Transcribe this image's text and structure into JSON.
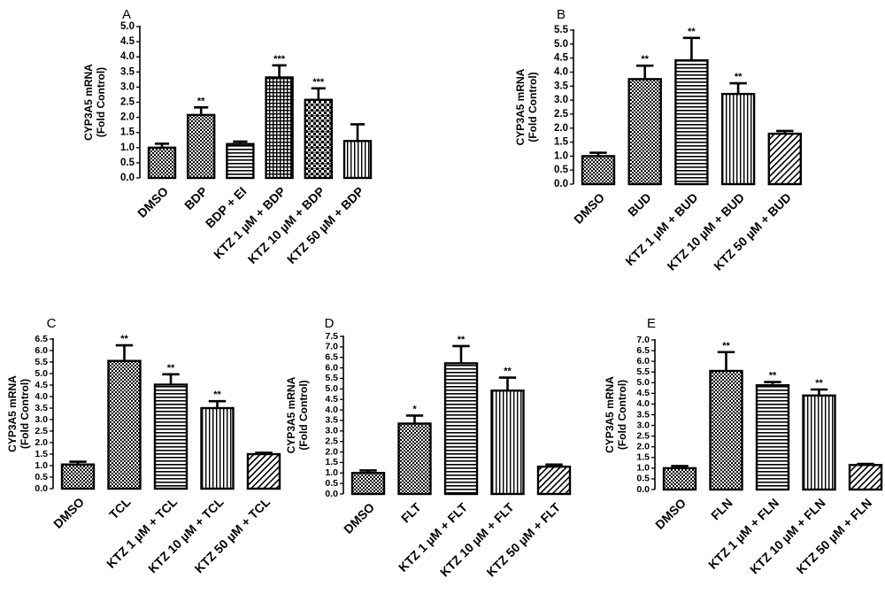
{
  "chart_data": [
    {
      "type": "bar",
      "panel_label": "A",
      "ylabel": [
        "CYP3A5 mRNA",
        "(Fold Control)"
      ],
      "ylim": [
        0,
        5.0
      ],
      "yticks": [
        "0.0",
        "0.5",
        "1.0",
        "1.5",
        "2.0",
        "2.5",
        "3.0",
        "3.5",
        "4.0",
        "4.5",
        "5.0"
      ],
      "categories": [
        "DMSO",
        "BDP",
        "BDP + EI",
        "KTZ 1 µM + BDP",
        "KTZ 10 µM + BDP",
        "KTZ 50 µM + BDP"
      ],
      "values": [
        1.0,
        2.08,
        1.12,
        3.32,
        2.58,
        1.22
      ],
      "errors": [
        0.13,
        0.25,
        0.08,
        0.4,
        0.38,
        0.55
      ],
      "significance": [
        "",
        "**",
        "",
        "***",
        "***",
        ""
      ],
      "patterns": [
        "dots",
        "dots",
        "hlines",
        "grid",
        "checks",
        "vlines"
      ]
    },
    {
      "type": "bar",
      "panel_label": "B",
      "ylabel": [
        "CYP3A5 mRNA",
        "(Fold Control)"
      ],
      "ylim": [
        0,
        5.5
      ],
      "yticks": [
        "0.0",
        "0.5",
        "1.0",
        "1.5",
        "2.0",
        "2.5",
        "3.0",
        "3.5",
        "4.0",
        "4.5",
        "5.0",
        "5.5"
      ],
      "categories": [
        "DMSO",
        "BUD",
        "KTZ 1 µM + BUD",
        "KTZ 10 µM + BUD",
        "KTZ 50 µM + BUD"
      ],
      "values": [
        1.0,
        3.75,
        4.42,
        3.22,
        1.8
      ],
      "errors": [
        0.12,
        0.48,
        0.8,
        0.38,
        0.1
      ],
      "significance": [
        "",
        "**",
        "**",
        "**",
        ""
      ],
      "patterns": [
        "dots",
        "dots",
        "hlines",
        "vlines",
        "diag"
      ]
    },
    {
      "type": "bar",
      "panel_label": "C",
      "ylabel": [
        "CYP3A5 mRNA",
        "(Fold Control)"
      ],
      "ylim": [
        0,
        6.5
      ],
      "yticks": [
        "0.0",
        "0.5",
        "1.0",
        "1.5",
        "2.0",
        "2.5",
        "3.0",
        "3.5",
        "4.0",
        "4.5",
        "5.0",
        "5.5",
        "6.0",
        "6.5"
      ],
      "categories": [
        "DMSO",
        "TCL",
        "KTZ 1 µM + TCL",
        "KTZ 10 µM + TCL",
        "KTZ 50 µM + TCL"
      ],
      "values": [
        1.05,
        5.55,
        4.52,
        3.5,
        1.5
      ],
      "errors": [
        0.12,
        0.68,
        0.45,
        0.3,
        0.06
      ],
      "significance": [
        "",
        "**",
        "**",
        "**",
        ""
      ],
      "patterns": [
        "dots",
        "dots",
        "hlines",
        "vlines",
        "diag"
      ]
    },
    {
      "type": "bar",
      "panel_label": "D",
      "ylabel": [
        "CYP3A5 mRNA",
        "(Fold Control)"
      ],
      "ylim": [
        0,
        7.5
      ],
      "yticks": [
        "0.0",
        "0.5",
        "1.0",
        "1.5",
        "2.0",
        "2.5",
        "3.0",
        "3.5",
        "4.0",
        "4.5",
        "5.0",
        "5.5",
        "6.0",
        "6.5",
        "7.0",
        "7.5"
      ],
      "categories": [
        "DMSO",
        "FLT",
        "KTZ 1 µM + FLT",
        "KTZ 10 µM + FLT",
        "KTZ 50 µM + FLT"
      ],
      "values": [
        1.0,
        3.35,
        6.22,
        4.92,
        1.3
      ],
      "errors": [
        0.12,
        0.38,
        0.82,
        0.62,
        0.1
      ],
      "significance": [
        "",
        "*",
        "**",
        "**",
        ""
      ],
      "patterns": [
        "dots",
        "dots",
        "hlines",
        "vlines",
        "diag"
      ]
    },
    {
      "type": "bar",
      "panel_label": "E",
      "ylabel": [
        "CYP3A5 mRNA",
        "(Fold Control)"
      ],
      "ylim": [
        0,
        7.0
      ],
      "yticks": [
        "0.0",
        "0.5",
        "1.0",
        "1.5",
        "2.0",
        "2.5",
        "3.0",
        "3.5",
        "4.0",
        "4.5",
        "5.0",
        "5.5",
        "6.0",
        "6.5",
        "7.0"
      ],
      "categories": [
        "DMSO",
        "FLN",
        "KTZ 1 µM + FLN",
        "KTZ 10 µM + FLN",
        "KTZ 50 µM + FLN"
      ],
      "values": [
        1.0,
        5.55,
        4.88,
        4.4,
        1.15
      ],
      "errors": [
        0.1,
        0.88,
        0.15,
        0.28,
        0.05
      ],
      "significance": [
        "",
        "**",
        "**",
        "**",
        ""
      ],
      "patterns": [
        "dots",
        "dots",
        "hlines",
        "vlines",
        "diag"
      ]
    }
  ]
}
